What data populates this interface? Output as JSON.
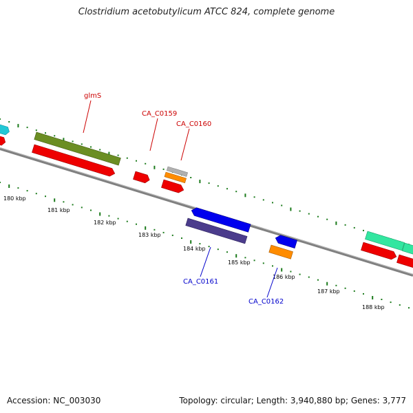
{
  "title": "Clostridium acetobutylicum ATCC 824, complete genome",
  "footer": {
    "accession": "Accession: NC_003030",
    "summary": "Topology: circular; Length: 3,940,880 bp; Genes: 3,777"
  },
  "colors": {
    "backbone": "#808080",
    "tick": "#1a7a1a",
    "label_forward": "#cc0000",
    "label_reverse": "#0000cc"
  },
  "kbp_labels": [
    "180 kbp",
    "181 kbp",
    "182 kbp",
    "183 kbp",
    "184 kbp",
    "185 kbp",
    "186 kbp",
    "187 kbp",
    "188 kbp"
  ],
  "gene_labels": [
    "glmS",
    "CA_C0159",
    "CA_C0160",
    "CA_C0161",
    "CA_C0162"
  ],
  "features": [
    {
      "name": "gene-cyan-left",
      "color": "#22c8d6"
    },
    {
      "name": "gene-red-left",
      "color": "#ee0000"
    },
    {
      "name": "gene-glmS-cds",
      "color": "#6b8e23"
    },
    {
      "name": "gene-glmS",
      "color": "#ee0000"
    },
    {
      "name": "gene-CA_C0159",
      "color": "#ee0000"
    },
    {
      "name": "gene-CA_C0160-grey",
      "color": "#b0b0b0"
    },
    {
      "name": "gene-CA_C0160-orange",
      "color": "#ff8c00"
    },
    {
      "name": "gene-CA_C0160",
      "color": "#ee0000"
    },
    {
      "name": "gene-CA_C0161",
      "color": "#0000ee"
    },
    {
      "name": "gene-CA_C0161-cds",
      "color": "#4b3c8c"
    },
    {
      "name": "gene-CA_C0162",
      "color": "#0000ee"
    },
    {
      "name": "gene-CA_C0162-orange",
      "color": "#ff8c00"
    },
    {
      "name": "gene-green-right-1",
      "color": "#33e6a0"
    },
    {
      "name": "gene-green-right-2",
      "color": "#33e6a0"
    },
    {
      "name": "gene-red-right-1",
      "color": "#ee0000"
    },
    {
      "name": "gene-red-right-2",
      "color": "#ee0000"
    }
  ]
}
